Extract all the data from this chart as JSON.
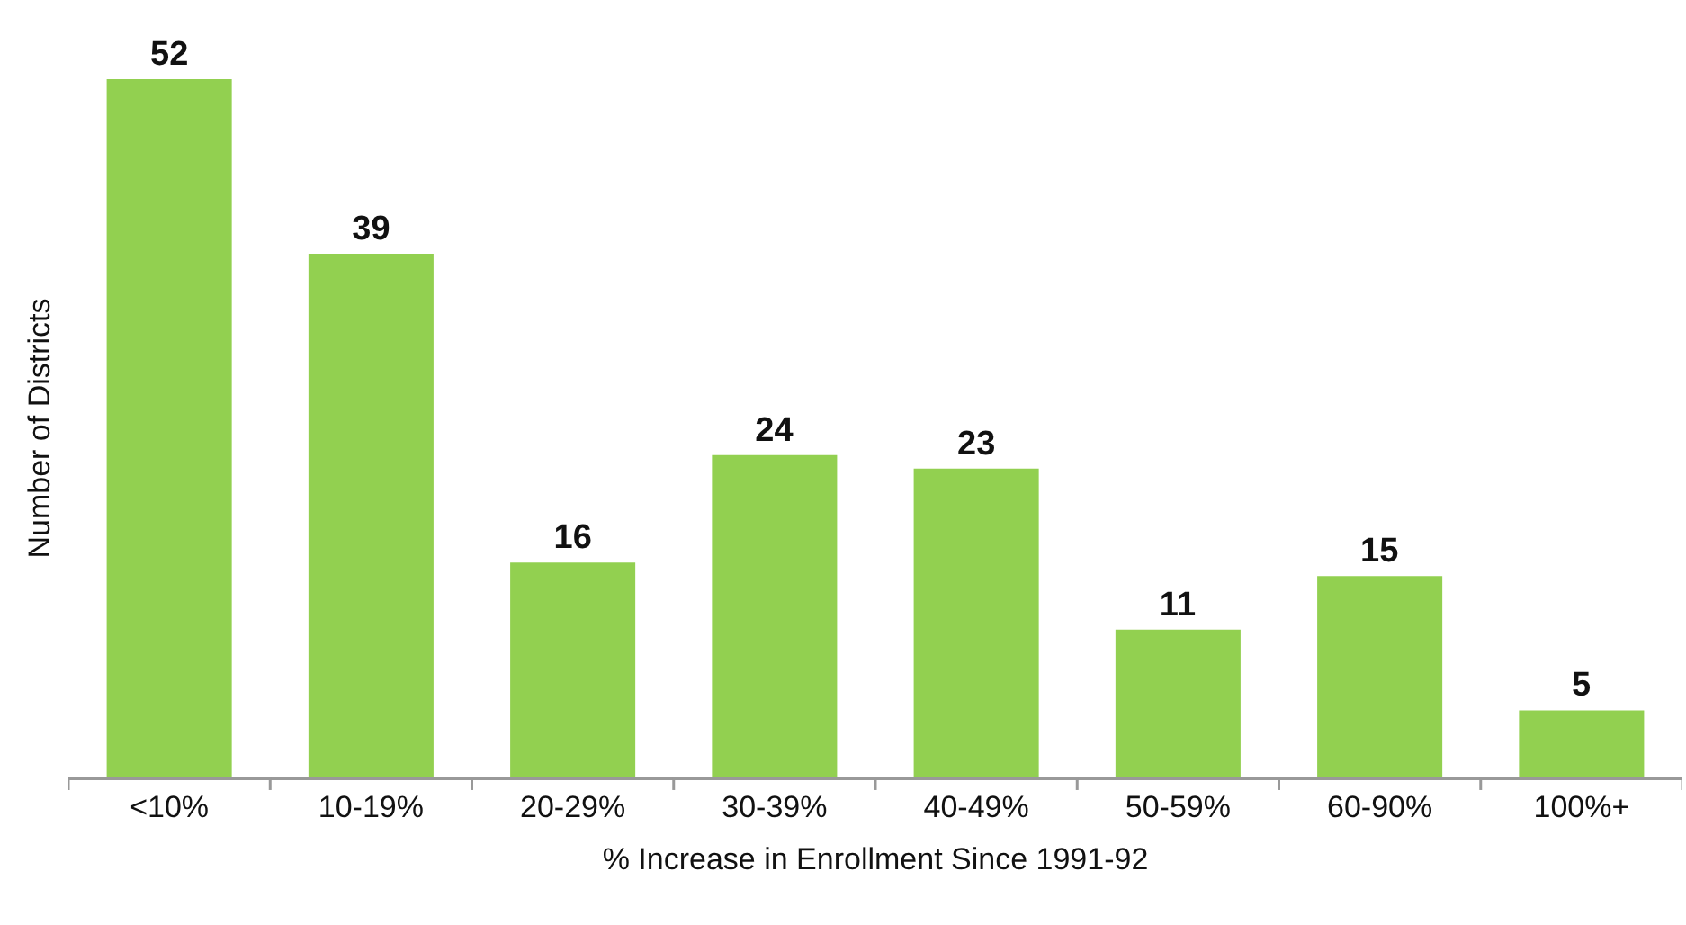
{
  "chart_data": {
    "type": "bar",
    "xlabel": "% Increase in Enrollment Since 1991-92",
    "ylabel": "Number of Districts",
    "categories": [
      "<10%",
      "10-19%",
      "20-29%",
      "30-39%",
      "40-49%",
      "50-59%",
      "60-90%",
      "100%+"
    ],
    "values": [
      52,
      39,
      16,
      24,
      23,
      11,
      15,
      5
    ],
    "color": "#92d050",
    "data_labels": true,
    "grid": false,
    "legend": false
  }
}
